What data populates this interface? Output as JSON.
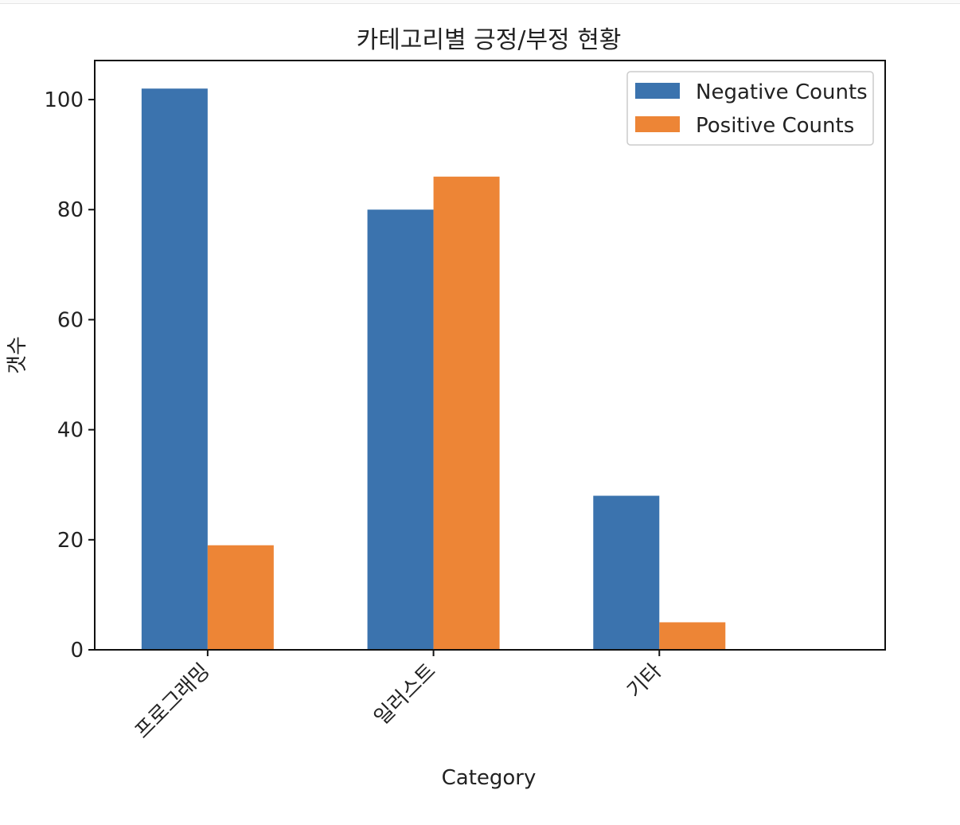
{
  "chart_data": {
    "type": "bar",
    "title": "카테고리별 긍정/부정 현황",
    "xlabel": "Category",
    "ylabel": "갯수",
    "categories": [
      "프로그래밍",
      "일러스트",
      "기타"
    ],
    "series": [
      {
        "name": "Negative Counts",
        "values": [
          102,
          80,
          28
        ],
        "color": "#3b73ae"
      },
      {
        "name": "Positive Counts",
        "values": [
          19,
          86,
          5
        ],
        "color": "#ed8536"
      }
    ],
    "ylim": [
      0,
      107.1
    ],
    "yticks": [
      0,
      20,
      40,
      60,
      80,
      100
    ],
    "grid": false,
    "legend_position": "top-right",
    "xtick_rotation": 45
  }
}
